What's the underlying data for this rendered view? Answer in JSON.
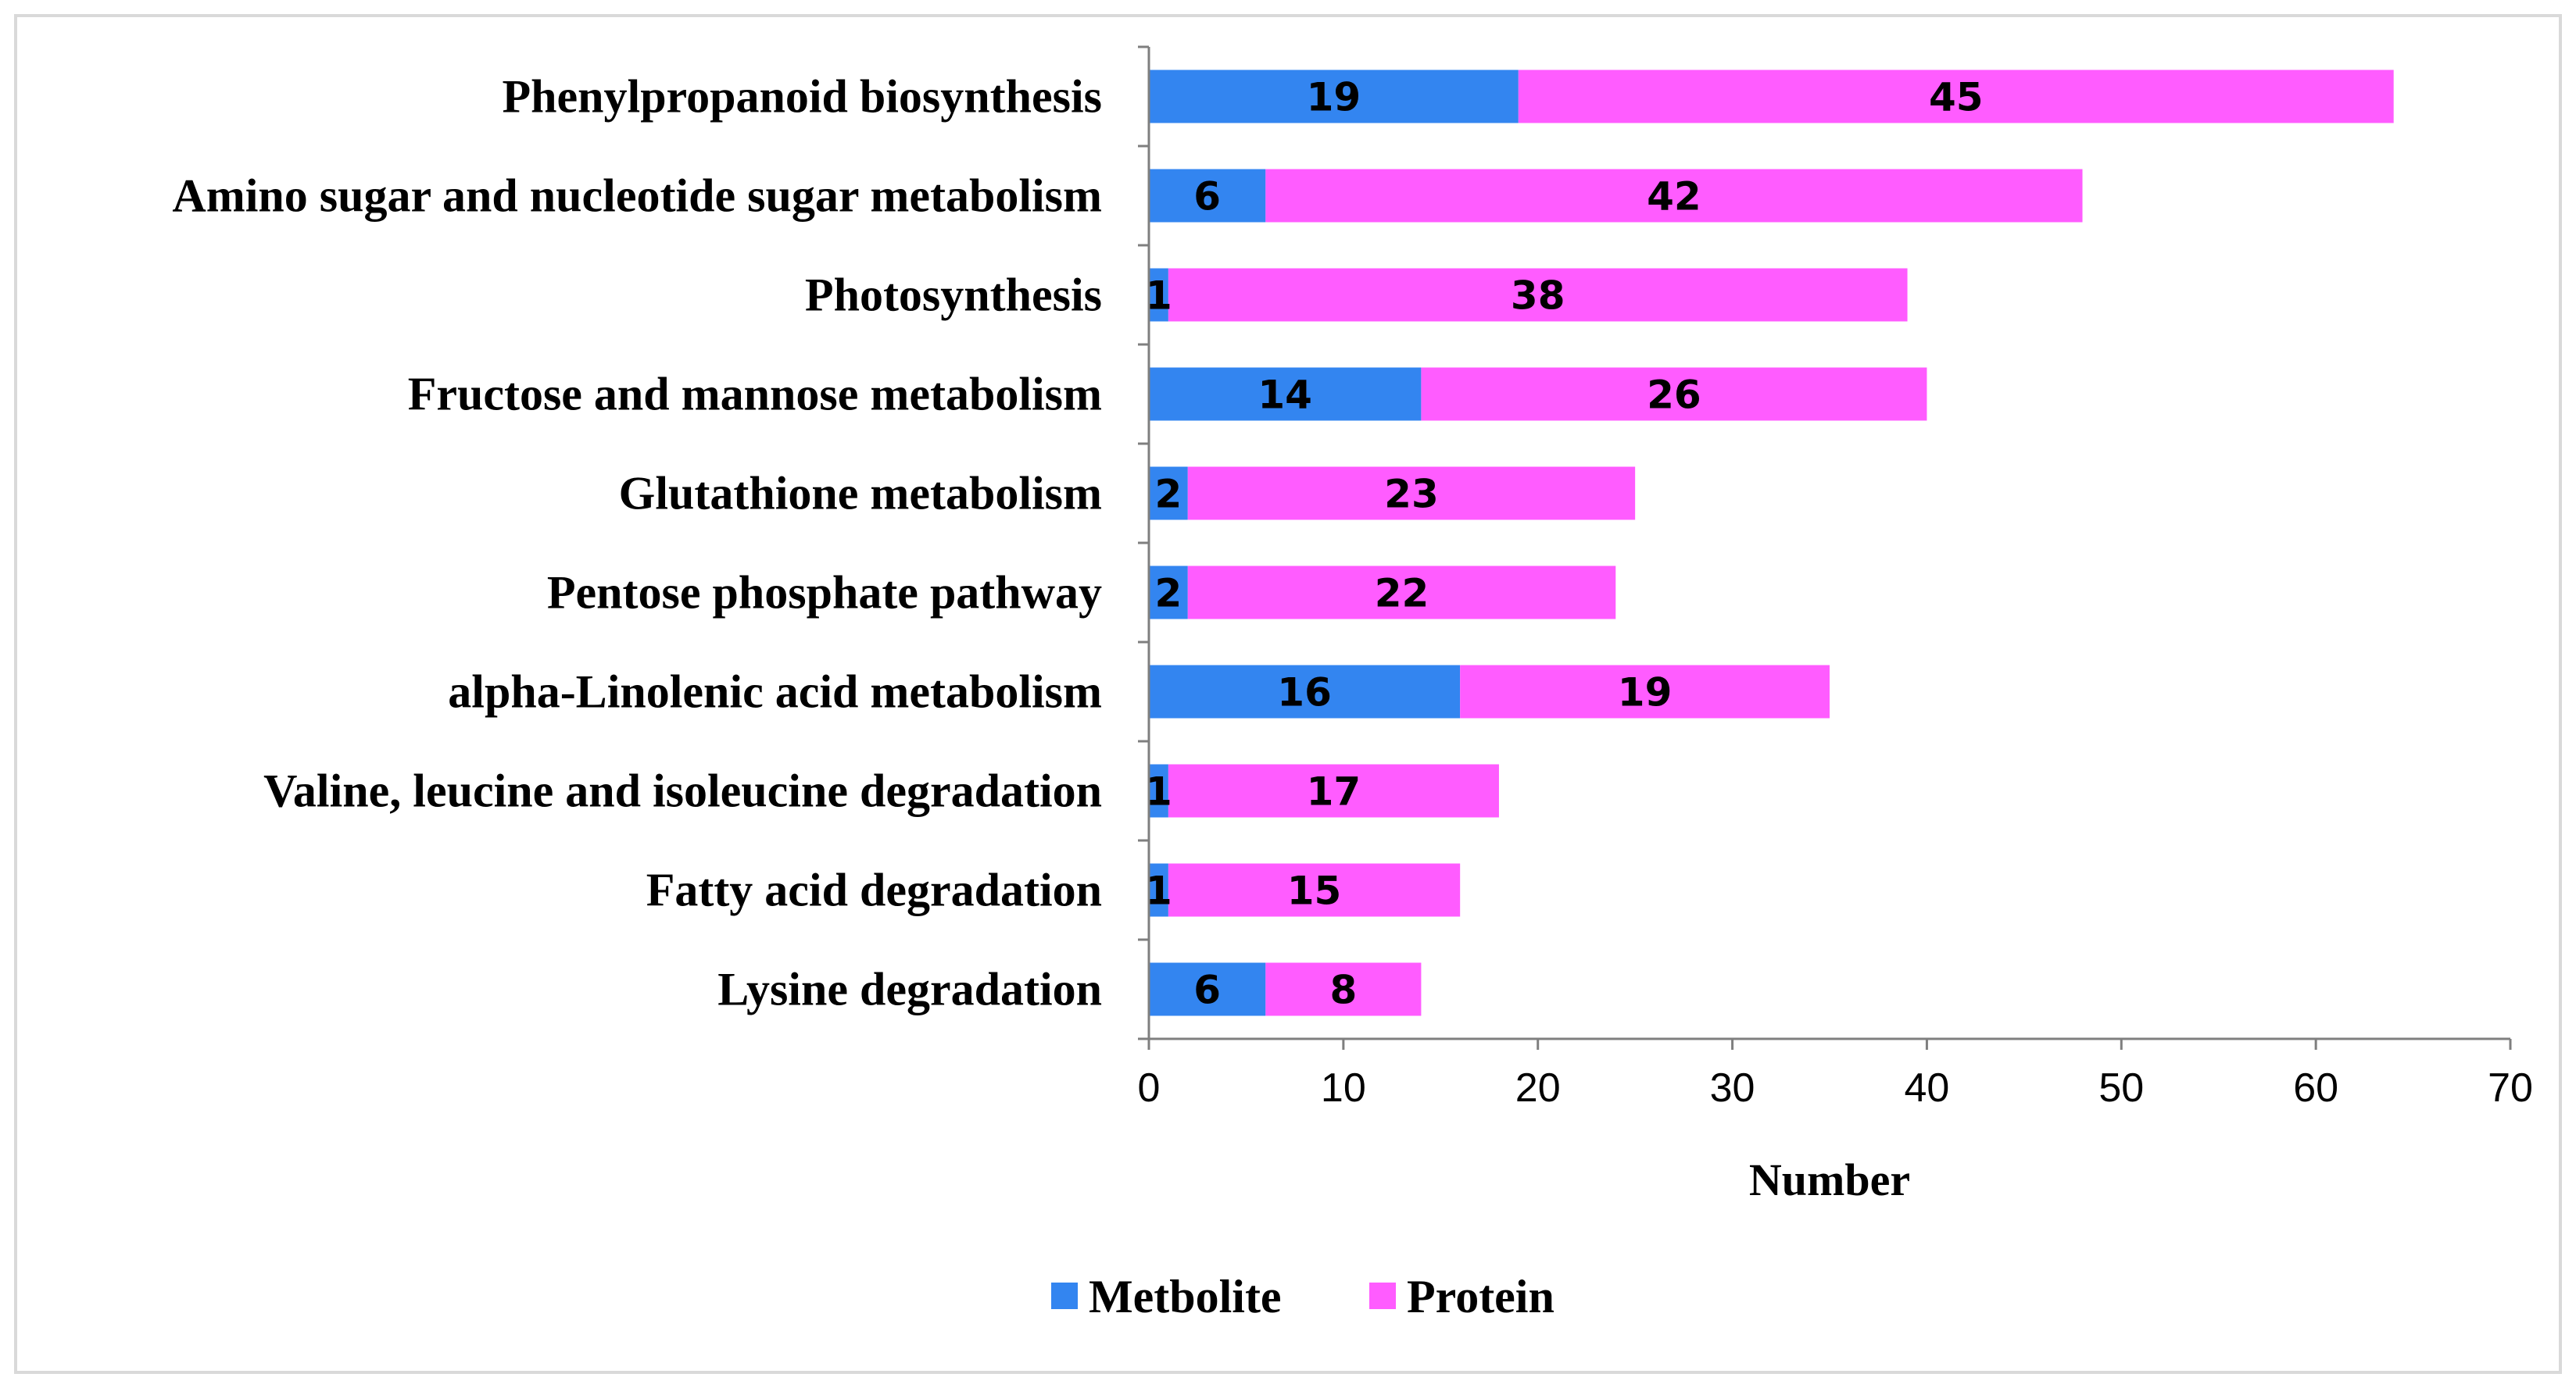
{
  "chart_data": {
    "type": "bar",
    "orientation": "horizontal",
    "stacked": true,
    "title": "",
    "xlabel": "Number",
    "ylabel": "",
    "xlim": [
      0,
      70
    ],
    "x_ticks": [
      0,
      10,
      20,
      30,
      40,
      50,
      60,
      70
    ],
    "grid": false,
    "legend_position": "bottom",
    "categories": [
      "Phenylpropanoid biosynthesis",
      "Amino sugar and nucleotide sugar metabolism",
      "Photosynthesis",
      "Fructose and mannose metabolism",
      "Glutathione metabolism",
      "Pentose phosphate pathway",
      "alpha-Linolenic acid metabolism",
      "Valine, leucine and isoleucine degradation",
      "Fatty acid degradation",
      "Lysine degradation"
    ],
    "series": [
      {
        "name": "Metbolite",
        "color": "#3385f0",
        "values": [
          19,
          6,
          1,
          14,
          2,
          2,
          16,
          1,
          1,
          6
        ]
      },
      {
        "name": "Protein",
        "color": "#ff5cff",
        "values": [
          45,
          42,
          38,
          26,
          23,
          22,
          19,
          17,
          15,
          8
        ]
      }
    ]
  }
}
